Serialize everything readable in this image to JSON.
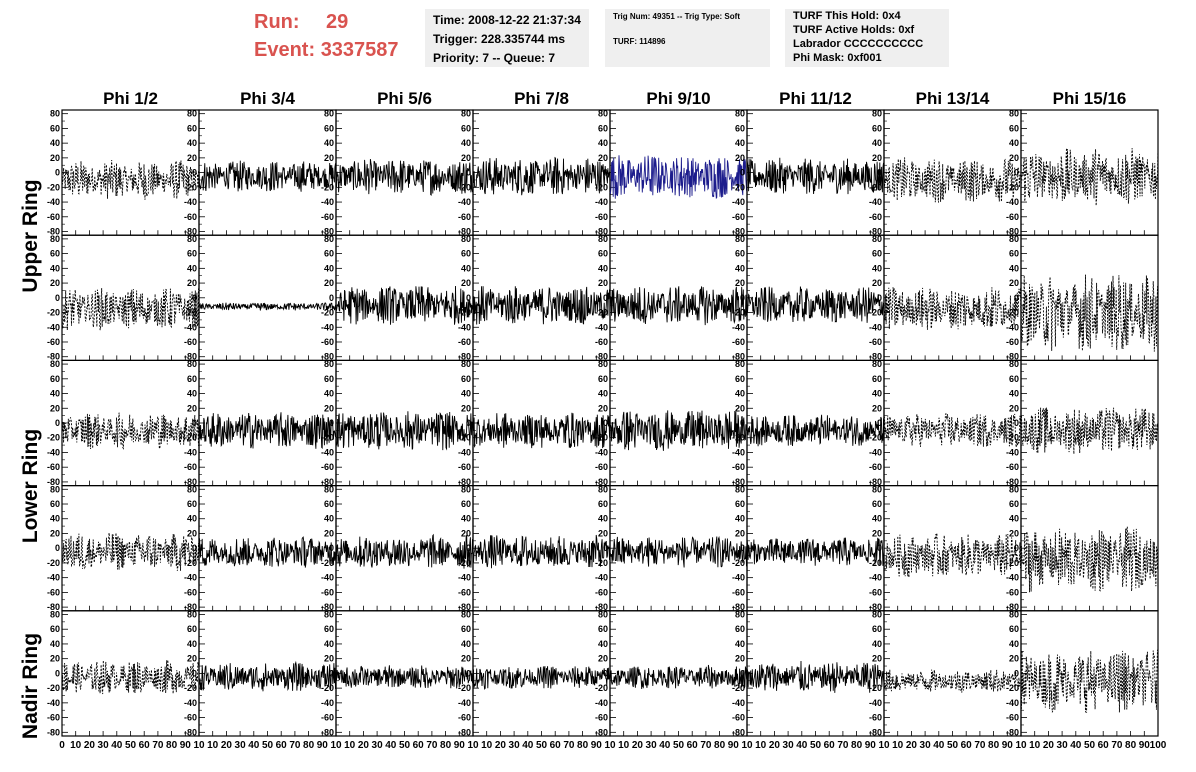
{
  "header": {
    "run_label": "Run:",
    "run_value": "29",
    "event_label": "Event:",
    "event_value": "3337587"
  },
  "info1": {
    "line1": "Time: 2008-12-22 21:37:34",
    "line2": "Trigger: 228.335744 ms",
    "line3": "Priority: 7 -- Queue: 7"
  },
  "info2": {
    "line1": "Trig Num: 49351 -- Trig Type: Soft",
    "line2": "TURF: 114896"
  },
  "info3": {
    "line1": "TURF This Hold: 0x4",
    "line2": "TURF Active Holds: 0xf",
    "line3": "Labrador CCCCCCCCCC",
    "line4": "Phi Mask: 0xf001"
  },
  "ring_labels": [
    "Upper Ring",
    "Lower Ring",
    "Nadir Ring"
  ],
  "colors": {
    "trace": "#000000",
    "highlight_trace": "#1c1c8c",
    "header_red": "#d9534f",
    "box_bg": "#efefef"
  },
  "chart_data": {
    "type": "line",
    "columns": [
      "Phi 1/2",
      "Phi 3/4",
      "Phi 5/6",
      "Phi 7/8",
      "Phi 9/10",
      "Phi 11/12",
      "Phi 13/14",
      "Phi 15/16"
    ],
    "rows": 5,
    "ylim": [
      -85,
      85
    ],
    "xlim": [
      0,
      100
    ],
    "y_ticks": [
      80,
      60,
      40,
      20,
      0,
      -20,
      -40,
      -60,
      -80
    ],
    "y_tick_labels": [
      "80",
      "60",
      "40",
      "20",
      "0",
      "-20",
      "-40",
      "-60",
      "-80"
    ],
    "x_tick_labels_first": [
      "0",
      "10",
      "20",
      "30",
      "40",
      "50",
      "60",
      "70",
      "80",
      "90",
      "10"
    ],
    "x_tick_labels_middle": [
      "10",
      "20",
      "30",
      "40",
      "50",
      "60",
      "70",
      "80",
      "90",
      "10"
    ],
    "x_tick_labels_last": [
      "10",
      "20",
      "30",
      "40",
      "50",
      "60",
      "70",
      "80",
      "90",
      "100"
    ],
    "highlighted_panel": {
      "row": 0,
      "col": 4
    },
    "trace_amplitudes": [
      [
        15,
        12,
        14,
        15,
        17,
        14,
        17,
        22
      ],
      [
        16,
        3,
        15,
        15,
        15,
        14,
        17,
        30
      ],
      [
        14,
        14,
        15,
        14,
        16,
        12,
        13,
        18
      ],
      [
        15,
        12,
        13,
        13,
        12,
        11,
        17,
        25
      ],
      [
        13,
        11,
        9,
        9,
        9,
        12,
        9,
        24
      ]
    ],
    "trace_offsets": [
      [
        -10,
        -5,
        -5,
        -5,
        -5,
        -5,
        -10,
        -5
      ],
      [
        -15,
        -12,
        -10,
        -10,
        -10,
        -10,
        -15,
        -20
      ],
      [
        -10,
        -10,
        -10,
        -10,
        -10,
        -10,
        -10,
        -10
      ],
      [
        -5,
        -5,
        -5,
        -5,
        -5,
        -5,
        -10,
        -15
      ],
      [
        -5,
        -5,
        -5,
        -5,
        -5,
        -5,
        -10,
        -10
      ]
    ],
    "dashed_columns": [
      0,
      6,
      7
    ]
  }
}
